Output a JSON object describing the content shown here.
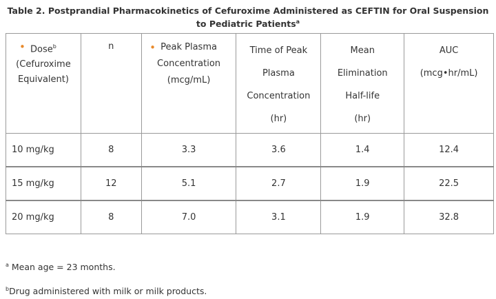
{
  "header": {
    "title": "Table 2. Postprandial Pharmacokinetics of Cefuroxime Administered as CEFTIN for Oral Suspension",
    "title_line2": "to Pediatric Patients",
    "title_sup": "a"
  },
  "table": {
    "columns": [
      {
        "lines": [
          "Dose",
          "(Cefuroxime",
          "Equivalent)"
        ],
        "sup": "b"
      },
      {
        "lines": [
          "n"
        ]
      },
      {
        "lines": [
          "Peak Plasma",
          "Concentration",
          "(mcg/mL)"
        ]
      },
      {
        "lines": [
          "Time of Peak",
          "Plasma",
          "Concentration",
          "(hr)"
        ]
      },
      {
        "lines": [
          "Mean",
          "Elimination",
          "Half-life",
          "(hr)"
        ]
      },
      {
        "lines": [
          "AUC",
          "(mcg•hr/mL)"
        ]
      }
    ],
    "rows": [
      [
        "10 mg/kg",
        "8",
        "3.3",
        "3.6",
        "1.4",
        "12.4"
      ],
      [
        "15 mg/kg",
        "12",
        "5.1",
        "2.7",
        "1.9",
        "22.5"
      ],
      [
        "20 mg/kg",
        "8",
        "7.0",
        "3.1",
        "1.9",
        "32.8"
      ]
    ]
  },
  "footnotes": [
    {
      "mark": "a",
      "text": " Mean age = 23 months."
    },
    {
      "mark": "b",
      "text": "Drug administered with milk or milk products."
    }
  ]
}
